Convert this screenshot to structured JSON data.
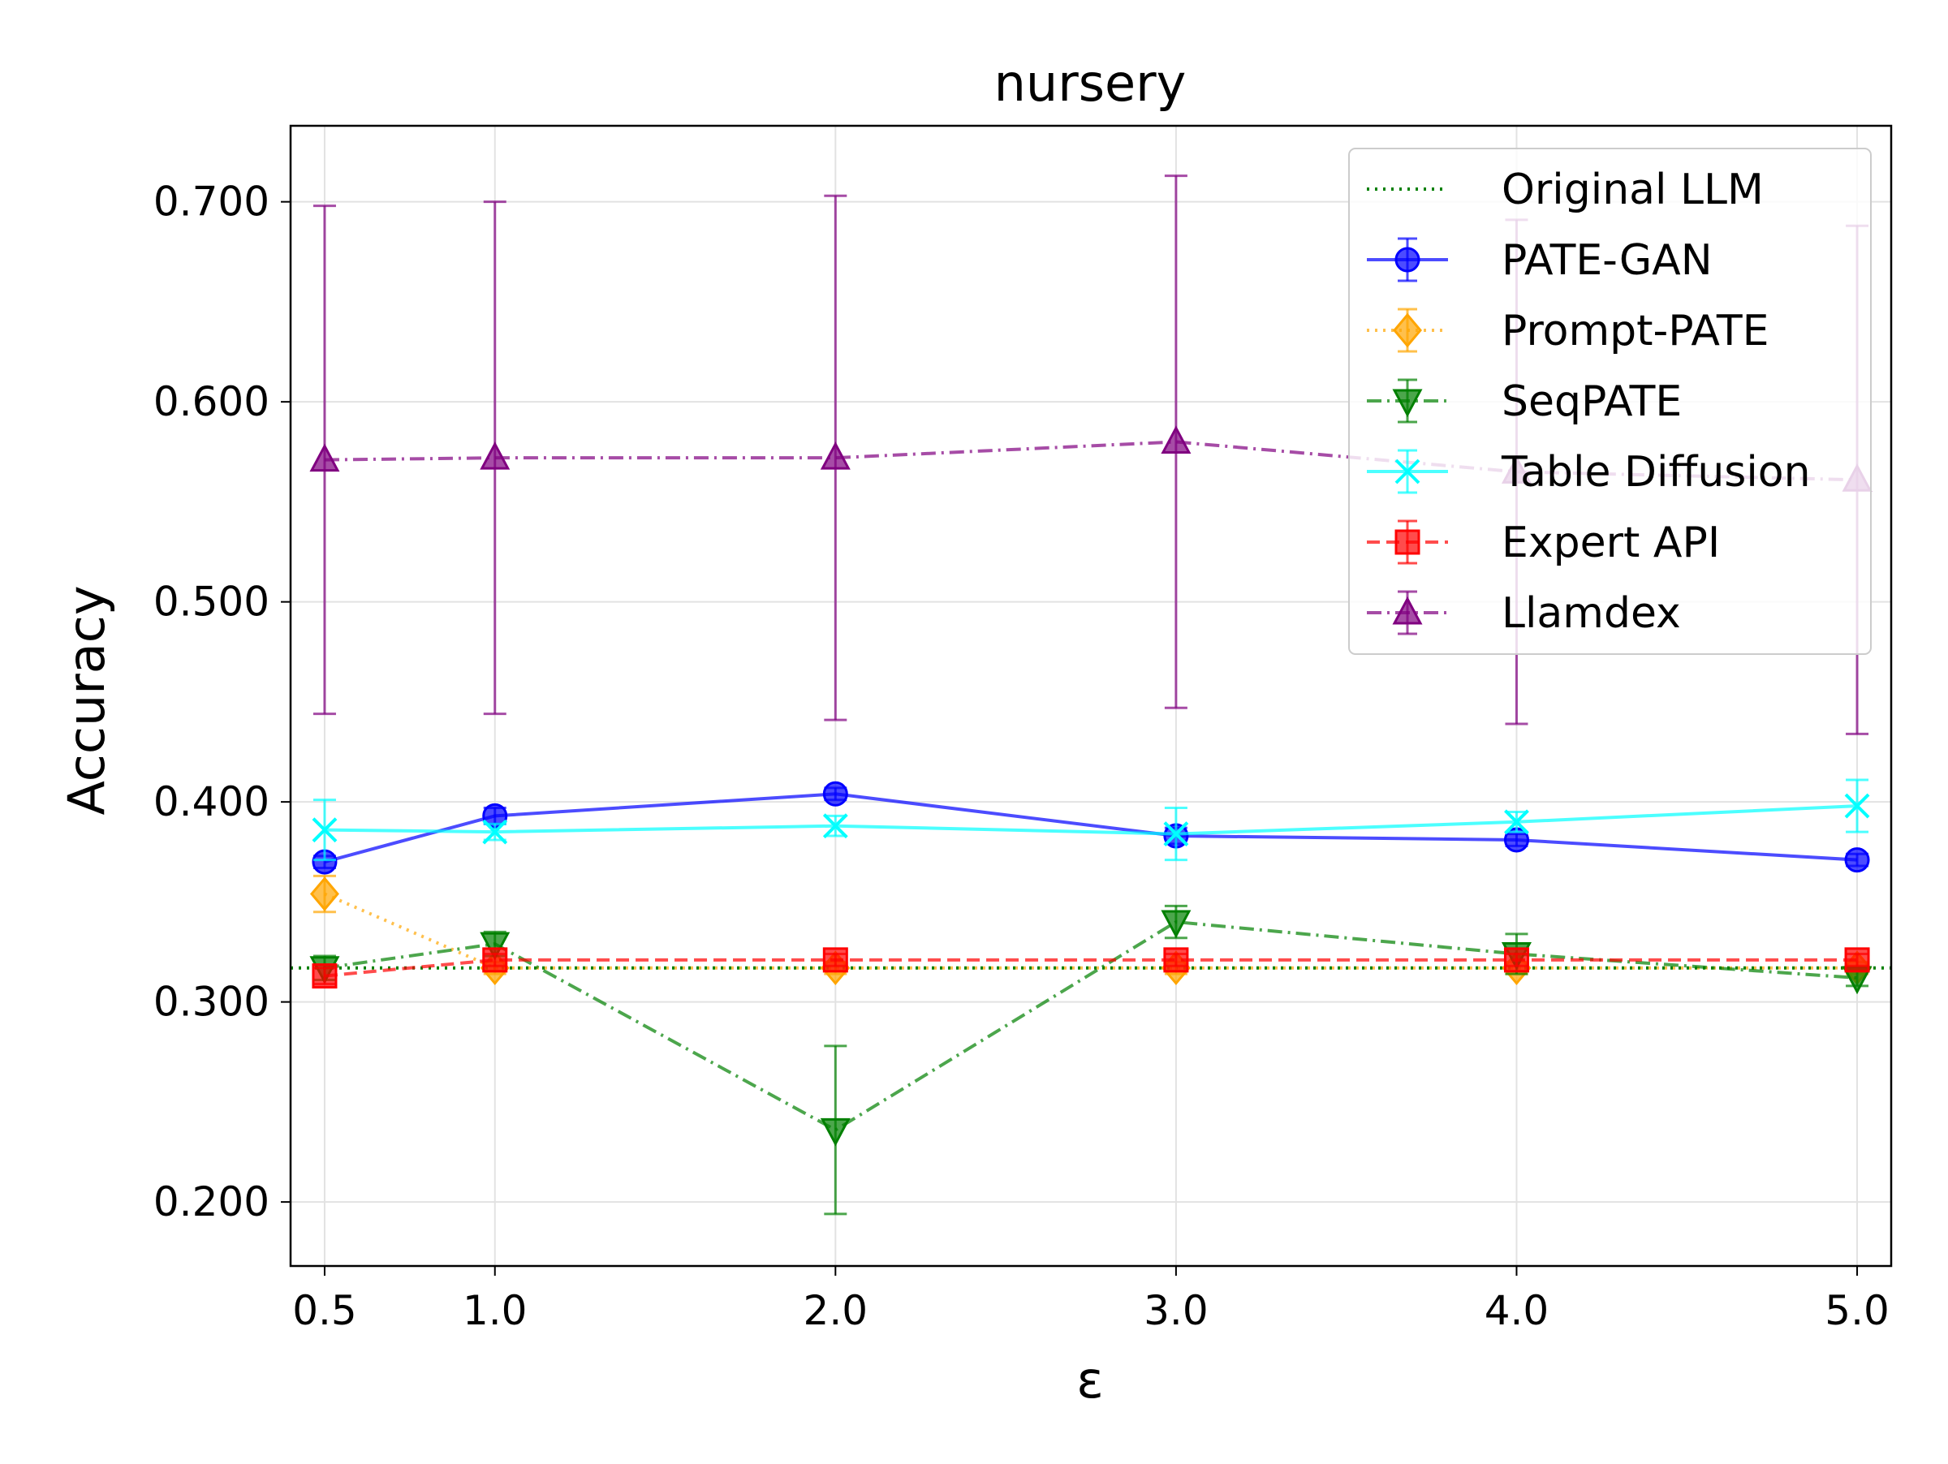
{
  "chart_data": {
    "type": "line",
    "title": "nursery",
    "xlabel": "ε",
    "ylabel": "Accuracy",
    "x": [
      0.5,
      1.0,
      2.0,
      3.0,
      4.0,
      5.0
    ],
    "x_tick_labels": [
      "0.5",
      "1.0",
      "2.0",
      "3.0",
      "4.0",
      "5.0"
    ],
    "y_ticks": [
      0.2,
      0.3,
      0.4,
      0.5,
      0.6,
      0.7
    ],
    "y_tick_labels": [
      "0.200",
      "0.300",
      "0.400",
      "0.500",
      "0.600",
      "0.700"
    ],
    "xlim": [
      0.4,
      5.1
    ],
    "ylim": [
      0.168,
      0.738
    ],
    "grid": true,
    "legend_position": "top-right",
    "baseline": {
      "name": "Original LLM",
      "value": 0.317,
      "color": "#008000",
      "style": "dotted"
    },
    "series": [
      {
        "name": "PATE-GAN",
        "color": "#0000ff",
        "marker": "circle",
        "style": "solid",
        "values": [
          0.37,
          0.393,
          0.404,
          0.383,
          0.381,
          0.371
        ],
        "errors": [
          0.003,
          0.004,
          0.003,
          0.004,
          0.003,
          0.003
        ]
      },
      {
        "name": "Prompt-PATE",
        "color": "#ffa500",
        "marker": "diamond",
        "style": "dotted",
        "values": [
          0.354,
          0.317,
          0.317,
          0.317,
          0.317,
          0.317
        ],
        "errors": [
          0.009,
          0.003,
          0.003,
          0.003,
          0.003,
          0.003
        ]
      },
      {
        "name": "SeqPATE",
        "color": "#008000",
        "marker": "triangle-down",
        "style": "dashdot",
        "values": [
          0.317,
          0.329,
          0.236,
          0.34,
          0.324,
          0.312
        ],
        "errors": [
          0.006,
          0.006,
          0.042,
          0.008,
          0.01,
          0.004
        ]
      },
      {
        "name": "Table Diffusion",
        "color": "#00ffff",
        "marker": "x",
        "style": "solid",
        "values": [
          0.386,
          0.385,
          0.388,
          0.384,
          0.39,
          0.398
        ],
        "errors": [
          0.015,
          0.004,
          0.005,
          0.013,
          0.005,
          0.013
        ]
      },
      {
        "name": "Expert API",
        "color": "#ff0000",
        "marker": "square",
        "style": "dashed",
        "values": [
          0.313,
          0.321,
          0.321,
          0.321,
          0.321,
          0.321
        ],
        "errors": [
          0.004,
          0.003,
          0.003,
          0.003,
          0.003,
          0.003
        ]
      },
      {
        "name": "Llamdex",
        "color": "#800080",
        "marker": "triangle-up",
        "style": "dashdot",
        "values": [
          0.571,
          0.572,
          0.572,
          0.58,
          0.565,
          0.561
        ],
        "errors": [
          0.127,
          0.128,
          0.131,
          0.133,
          0.126,
          0.127
        ]
      }
    ]
  }
}
